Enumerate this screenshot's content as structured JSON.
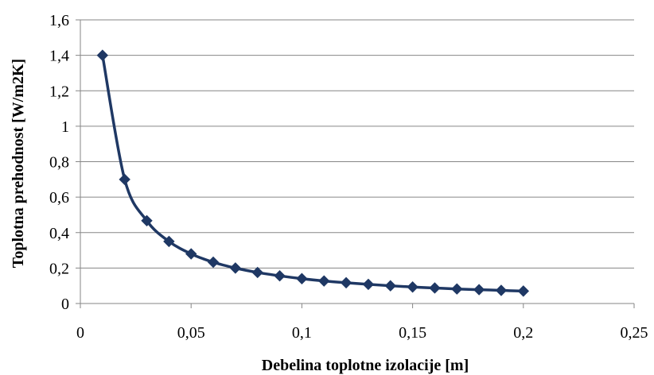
{
  "chart_data": {
    "type": "scatter",
    "title": "",
    "xlabel": "Debelina toplotne izolacije [m]",
    "ylabel": "Toplotna prehodnost [W/m2K]",
    "xlim": [
      0,
      0.25
    ],
    "ylim": [
      0,
      1.6
    ],
    "x_ticks": [
      "0",
      "0,05",
      "0,1",
      "0,15",
      "0,2",
      "0,25"
    ],
    "y_ticks": [
      "0",
      "0,2",
      "0,4",
      "0,6",
      "0,8",
      "1",
      "1,2",
      "1,4",
      "1,6"
    ],
    "grid": "horizontal",
    "legend": "none",
    "line_style": "smoothed",
    "marker": "diamond",
    "colors": {
      "series": "#1F3864",
      "grid": "#868686",
      "text": "#000000"
    },
    "series": [
      {
        "x": [
          0.01,
          0.02,
          0.03,
          0.04,
          0.05,
          0.06,
          0.07,
          0.08,
          0.09,
          0.1,
          0.11,
          0.12,
          0.13,
          0.14,
          0.15,
          0.16,
          0.17,
          0.18,
          0.19,
          0.2
        ],
        "y": [
          1.4,
          0.7,
          0.467,
          0.35,
          0.28,
          0.233,
          0.2,
          0.175,
          0.156,
          0.14,
          0.127,
          0.117,
          0.108,
          0.1,
          0.093,
          0.0875,
          0.082,
          0.078,
          0.074,
          0.07
        ]
      }
    ]
  }
}
